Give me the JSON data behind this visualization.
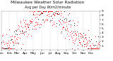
{
  "title": "Milwaukee Weather Solar Radiation",
  "subtitle": "Avg per Day W/m2/minute",
  "months": [
    "Jan",
    "Feb",
    "Mar",
    "Apr",
    "May",
    "Jun",
    "Jul",
    "Aug",
    "Sep",
    "Oct",
    "Nov",
    "Dec"
  ],
  "month_day_starts": [
    1,
    32,
    60,
    91,
    121,
    152,
    182,
    213,
    244,
    274,
    305,
    335
  ],
  "ylim": [
    0,
    9
  ],
  "yticks": [
    1,
    2,
    3,
    4,
    5,
    6,
    7,
    8,
    9
  ],
  "background": "#ffffff",
  "dot_color_red": "#ff0000",
  "dot_color_black": "#000000",
  "grid_color": "#bbbbbb",
  "title_fontsize": 4.2,
  "subtitle_fontsize": 3.5,
  "tick_fontsize": 3.2,
  "seed": 42,
  "num_points": 365
}
